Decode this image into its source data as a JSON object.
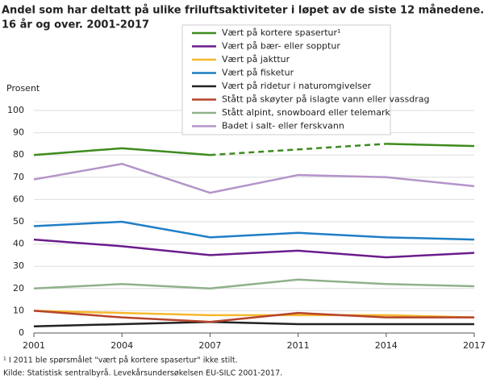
{
  "chart_data": {
    "type": "line",
    "title": "Andel som har deltatt på ulike friluftsaktiviteter i løpet av de siste 12 månedene.",
    "subtitle": "16 år og over. 2001-2017",
    "y_label": "Prosent",
    "categories": [
      "2001",
      "2004",
      "2007",
      "2011",
      "2014",
      "2017"
    ],
    "series": [
      {
        "name": "Vært på kortere spasertur¹",
        "color": "#3d8b1e",
        "values": [
          80,
          83,
          80,
          null,
          85,
          84
        ]
      },
      {
        "name": "Vært på bær- eller sopptur",
        "color": "#6b1c8c",
        "values": [
          42,
          39,
          35,
          37,
          34,
          36
        ]
      },
      {
        "name": "Vært på jakttur",
        "color": "#f5b82e",
        "values": [
          10,
          9,
          8,
          8,
          8,
          7
        ]
      },
      {
        "name": "Vært på fisketur",
        "color": "#1f7ec6",
        "values": [
          48,
          50,
          43,
          45,
          43,
          42
        ]
      },
      {
        "name": "Vært på ridetur i naturomgivelser",
        "color": "#222222",
        "values": [
          3,
          4,
          5,
          4,
          4,
          4
        ]
      },
      {
        "name": "Stått på skøyter på islagte vann eller vassdrag",
        "color": "#b5442b",
        "values": [
          10,
          7,
          5,
          9,
          7,
          7
        ]
      },
      {
        "name": "Stått alpint, snowboard eller telemark",
        "color": "#8fb18a",
        "values": [
          20,
          22,
          20,
          24,
          22,
          21
        ]
      },
      {
        "name": "Badet i salt- eller ferskvann",
        "color": "#b494c9",
        "values": [
          69,
          76,
          63,
          71,
          70,
          66
        ]
      }
    ],
    "gap_style": "dashed",
    "ylim": [
      0,
      100
    ],
    "yticks": [
      0,
      10,
      20,
      30,
      40,
      50,
      60,
      70,
      80,
      90,
      100
    ],
    "grid": true,
    "footnote": "¹ I 2011 ble spørsmålet \"vært på kortere spasertur\" ikke stilt.",
    "source": "Kilde: Statistisk sentralbyrå. Levekårsundersøkelsen EU-SILC 2001-2017."
  }
}
